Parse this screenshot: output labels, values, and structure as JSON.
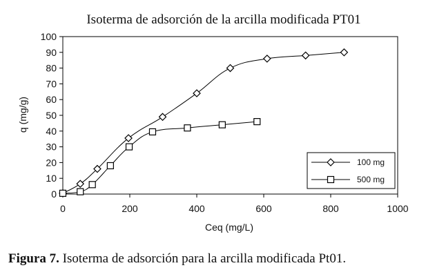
{
  "chart_data": {
    "type": "line",
    "title": "Isoterma de adsorción de la arcilla modificada PT01",
    "xlabel": "Ceq (mg/L)",
    "ylabel": "q (mg/g)",
    "xlim": [
      0,
      1000
    ],
    "ylim": [
      0,
      100
    ],
    "xticks": [
      "0",
      "200",
      "400",
      "600",
      "800",
      "1000"
    ],
    "yticks": [
      "0",
      "10",
      "20",
      "30",
      "40",
      "50",
      "60",
      "70",
      "80",
      "90",
      "100"
    ],
    "grid": false,
    "legend_position": "right-bottom",
    "series": [
      {
        "name": "100 mg",
        "marker": "diamond",
        "x": [
          0,
          52,
          103,
          196,
          298,
          400,
          500,
          610,
          725,
          840
        ],
        "y": [
          0.5,
          6.5,
          16,
          35.5,
          49,
          64,
          80,
          86,
          88,
          90
        ]
      },
      {
        "name": "500 mg",
        "marker": "square",
        "x": [
          0,
          52,
          88,
          142,
          198,
          268,
          372,
          476,
          580
        ],
        "y": [
          0.5,
          1.5,
          6,
          18,
          30,
          39.5,
          42,
          44,
          46
        ]
      }
    ]
  },
  "caption": {
    "label": "Figura 7.",
    "text": " Isoterma de adsorción para la arcilla modificada Pt01."
  },
  "colors": {
    "line": "#000000",
    "marker_fill": "#ffffff",
    "background": "#ffffff"
  }
}
